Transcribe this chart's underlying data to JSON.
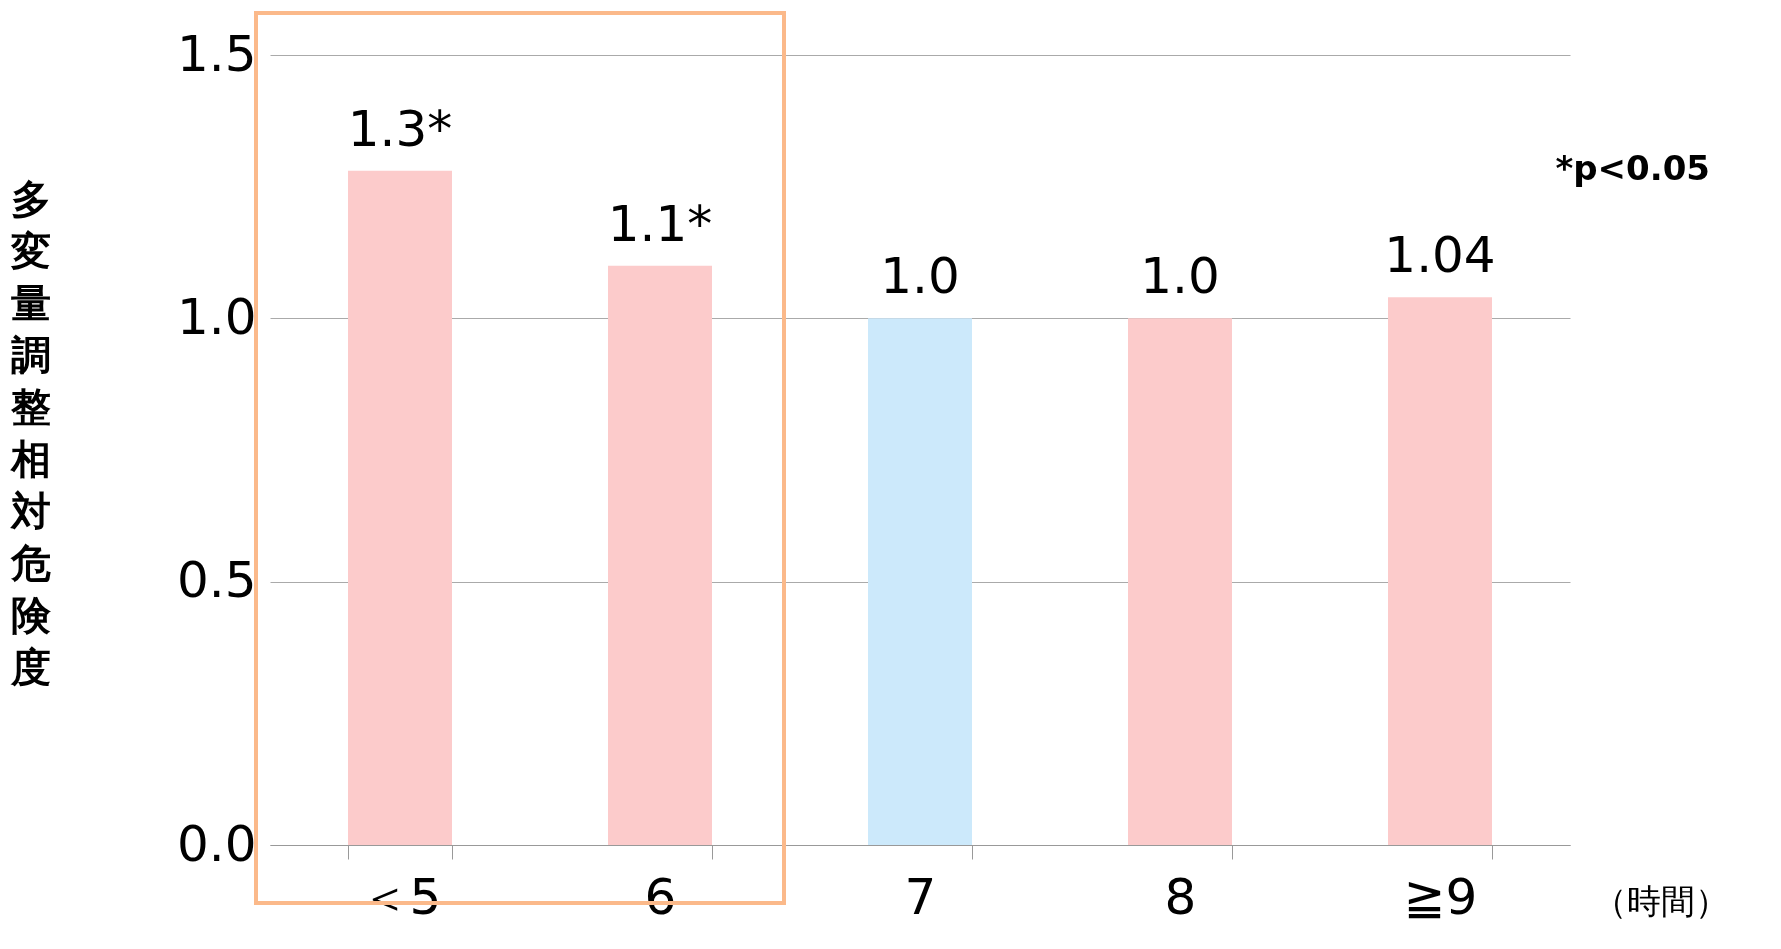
{
  "chart_data": {
    "type": "bar",
    "ylabel": "多変量調整相対危険度",
    "xlabel": "（時間）",
    "categories": [
      "＜5",
      "6",
      "7",
      "8",
      "≧9"
    ],
    "values": [
      1.28,
      1.1,
      1.0,
      1.0,
      1.04
    ],
    "colors": [
      "#fccbcb",
      "#fccbcb",
      "#cce9fb",
      "#fccbcb",
      "#fccbcb"
    ],
    "value_labels": [
      "1.3*",
      "1.1*",
      "1.0",
      "1.0",
      "1.04"
    ],
    "ylim": [
      0,
      1.5
    ],
    "yticks": [
      {
        "value": 0,
        "label": "0.0"
      },
      {
        "value": 0.5,
        "label": "0.5"
      },
      {
        "value": 1,
        "label": "1.0"
      },
      {
        "value": 1.5,
        "label": "1.5"
      }
    ],
    "grid": "y",
    "annotations": [
      "*p<0.05"
    ]
  }
}
